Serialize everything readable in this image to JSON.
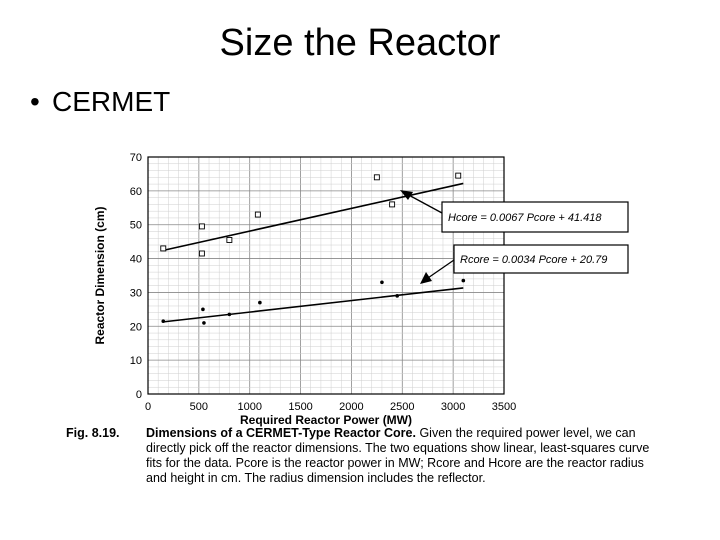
{
  "slide": {
    "title": "Size the Reactor",
    "bullet": "CERMET"
  },
  "equations": {
    "h": "Hcore = 0.0067 Pcore + 41.418",
    "r": "Rcore = 0.0034 Pcore + 20.79"
  },
  "caption": {
    "figure_number": "Fig. 8.19.",
    "heading": "Dimensions of a CERMET-Type Reactor Core.",
    "body": "Given the required power level, we can directly pick off the reactor dimensions. The two equations show linear, least-squares curve fits for the data. Pcore is the reactor power in MW; Rcore and Hcore are the reactor radius and height in cm. The radius dimension includes the reflector."
  },
  "chart_data": {
    "type": "scatter",
    "xlabel": "Required Reactor Power (MW)",
    "ylabel": "Reactor Dimension (cm)",
    "xlim": [
      0,
      3500
    ],
    "ylim": [
      0,
      70
    ],
    "xticks": [
      0,
      500,
      1000,
      1500,
      2000,
      2500,
      3000,
      3500
    ],
    "yticks": [
      0,
      10,
      20,
      30,
      40,
      50,
      60,
      70
    ],
    "grid": true,
    "series": [
      {
        "marker": "square",
        "x": [
          150,
          530,
          530,
          800,
          1080,
          2250,
          2400,
          3050
        ],
        "y": [
          43,
          49.5,
          41.5,
          45.5,
          53,
          64,
          56,
          64.5
        ]
      },
      {
        "marker": "dot",
        "x": [
          150,
          540,
          550,
          800,
          1100,
          2300,
          2450,
          3100
        ],
        "y": [
          21.5,
          25,
          21,
          23.5,
          27,
          33,
          29,
          33.5
        ]
      }
    ],
    "fits": [
      {
        "slope": 0.0067,
        "intercept": 41.418,
        "x": [
          150,
          3100
        ]
      },
      {
        "slope": 0.0034,
        "intercept": 20.79,
        "x": [
          150,
          3100
        ]
      }
    ]
  }
}
